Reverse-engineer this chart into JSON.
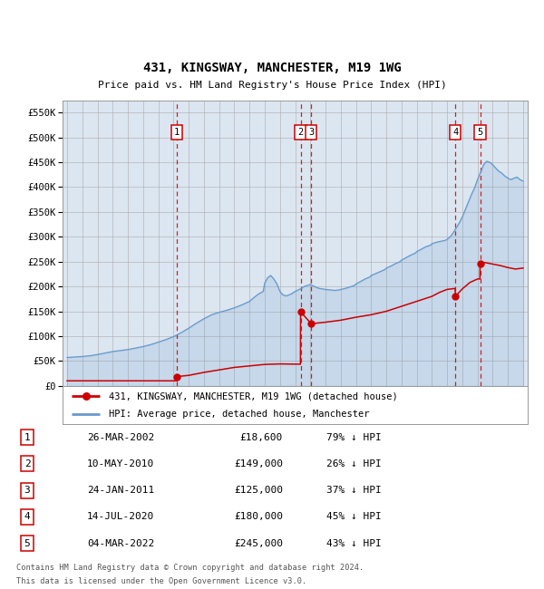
{
  "title": "431, KINGSWAY, MANCHESTER, M19 1WG",
  "subtitle": "Price paid vs. HM Land Registry's House Price Index (HPI)",
  "property_label": "431, KINGSWAY, MANCHESTER, M19 1WG (detached house)",
  "hpi_label": "HPI: Average price, detached house, Manchester",
  "property_color": "#cc0000",
  "hpi_color": "#6699cc",
  "background_color": "#dce6f1",
  "ylim": [
    0,
    575000
  ],
  "yticks": [
    0,
    50000,
    100000,
    150000,
    200000,
    250000,
    300000,
    350000,
    400000,
    450000,
    500000,
    550000
  ],
  "ytick_labels": [
    "£0",
    "£50K",
    "£100K",
    "£150K",
    "£200K",
    "£250K",
    "£300K",
    "£350K",
    "£400K",
    "£450K",
    "£500K",
    "£550K"
  ],
  "footer_line1": "Contains HM Land Registry data © Crown copyright and database right 2024.",
  "footer_line2": "This data is licensed under the Open Government Licence v3.0.",
  "transactions": [
    {
      "num": 1,
      "date": "26-MAR-2002",
      "date_float": 2002.23,
      "price": 18600,
      "price_str": "£18,600",
      "pct": "79% ↓ HPI"
    },
    {
      "num": 2,
      "date": "10-MAY-2010",
      "date_float": 2010.36,
      "price": 149000,
      "price_str": "£149,000",
      "pct": "26% ↓ HPI"
    },
    {
      "num": 3,
      "date": "24-JAN-2011",
      "date_float": 2011.07,
      "price": 125000,
      "price_str": "£125,000",
      "pct": "37% ↓ HPI"
    },
    {
      "num": 4,
      "date": "14-JUL-2020",
      "date_float": 2020.54,
      "price": 180000,
      "price_str": "£180,000",
      "pct": "45% ↓ HPI"
    },
    {
      "num": 5,
      "date": "04-MAR-2022",
      "date_float": 2022.17,
      "price": 245000,
      "price_str": "£245,000",
      "pct": "43% ↓ HPI"
    }
  ],
  "hpi_data": [
    [
      1995.0,
      57000
    ],
    [
      1995.5,
      58000
    ],
    [
      1996.0,
      59000
    ],
    [
      1996.5,
      60500
    ],
    [
      1997.0,
      63000
    ],
    [
      1997.5,
      66000
    ],
    [
      1998.0,
      69000
    ],
    [
      1998.5,
      71000
    ],
    [
      1999.0,
      73000
    ],
    [
      1999.5,
      76000
    ],
    [
      2000.0,
      79000
    ],
    [
      2000.5,
      83000
    ],
    [
      2001.0,
      88000
    ],
    [
      2001.5,
      93000
    ],
    [
      2002.0,
      99000
    ],
    [
      2002.5,
      107000
    ],
    [
      2003.0,
      116000
    ],
    [
      2003.5,
      126000
    ],
    [
      2004.0,
      135000
    ],
    [
      2004.5,
      143000
    ],
    [
      2005.0,
      148000
    ],
    [
      2005.5,
      152000
    ],
    [
      2006.0,
      157000
    ],
    [
      2006.5,
      163000
    ],
    [
      2007.0,
      170000
    ],
    [
      2007.3,
      178000
    ],
    [
      2007.6,
      185000
    ],
    [
      2007.9,
      190000
    ],
    [
      2008.0,
      207000
    ],
    [
      2008.2,
      218000
    ],
    [
      2008.4,
      222000
    ],
    [
      2008.6,
      215000
    ],
    [
      2008.8,
      205000
    ],
    [
      2009.0,
      190000
    ],
    [
      2009.2,
      183000
    ],
    [
      2009.4,
      181000
    ],
    [
      2009.6,
      183000
    ],
    [
      2009.8,
      186000
    ],
    [
      2010.0,
      190000
    ],
    [
      2010.2,
      193000
    ],
    [
      2010.4,
      196000
    ],
    [
      2010.6,
      200000
    ],
    [
      2010.8,
      202000
    ],
    [
      2011.0,
      204000
    ],
    [
      2011.2,
      201000
    ],
    [
      2011.4,
      198000
    ],
    [
      2011.6,
      196000
    ],
    [
      2011.8,
      195000
    ],
    [
      2012.0,
      194000
    ],
    [
      2012.3,
      193000
    ],
    [
      2012.6,
      192000
    ],
    [
      2012.9,
      193000
    ],
    [
      2013.0,
      194000
    ],
    [
      2013.3,
      196000
    ],
    [
      2013.6,
      199000
    ],
    [
      2013.9,
      202000
    ],
    [
      2014.0,
      205000
    ],
    [
      2014.3,
      210000
    ],
    [
      2014.6,
      215000
    ],
    [
      2014.9,
      219000
    ],
    [
      2015.0,
      222000
    ],
    [
      2015.3,
      226000
    ],
    [
      2015.6,
      230000
    ],
    [
      2015.9,
      234000
    ],
    [
      2016.0,
      237000
    ],
    [
      2016.3,
      241000
    ],
    [
      2016.6,
      246000
    ],
    [
      2016.9,
      250000
    ],
    [
      2017.0,
      253000
    ],
    [
      2017.3,
      258000
    ],
    [
      2017.6,
      263000
    ],
    [
      2017.9,
      267000
    ],
    [
      2018.0,
      270000
    ],
    [
      2018.3,
      275000
    ],
    [
      2018.6,
      280000
    ],
    [
      2018.9,
      283000
    ],
    [
      2019.0,
      286000
    ],
    [
      2019.3,
      289000
    ],
    [
      2019.6,
      291000
    ],
    [
      2019.9,
      293000
    ],
    [
      2020.0,
      295000
    ],
    [
      2020.2,
      300000
    ],
    [
      2020.4,
      308000
    ],
    [
      2020.6,
      318000
    ],
    [
      2020.8,
      328000
    ],
    [
      2021.0,
      340000
    ],
    [
      2021.2,
      355000
    ],
    [
      2021.4,
      370000
    ],
    [
      2021.6,
      385000
    ],
    [
      2021.8,
      398000
    ],
    [
      2022.0,
      415000
    ],
    [
      2022.2,
      430000
    ],
    [
      2022.4,
      445000
    ],
    [
      2022.6,
      452000
    ],
    [
      2022.8,
      450000
    ],
    [
      2023.0,
      445000
    ],
    [
      2023.2,
      438000
    ],
    [
      2023.4,
      432000
    ],
    [
      2023.6,
      428000
    ],
    [
      2023.8,
      422000
    ],
    [
      2024.0,
      418000
    ],
    [
      2024.2,
      415000
    ],
    [
      2024.4,
      418000
    ],
    [
      2024.6,
      420000
    ],
    [
      2024.8,
      415000
    ],
    [
      2025.0,
      412000
    ]
  ],
  "prop_data": [
    [
      1995.0,
      10000
    ],
    [
      2002.22,
      10000
    ],
    [
      2002.23,
      18600
    ],
    [
      2003.0,
      21000
    ],
    [
      2004.0,
      27000
    ],
    [
      2005.0,
      32000
    ],
    [
      2006.0,
      37000
    ],
    [
      2007.0,
      40000
    ],
    [
      2008.0,
      43000
    ],
    [
      2009.0,
      44000
    ],
    [
      2010.35,
      43500
    ],
    [
      2010.36,
      149000
    ],
    [
      2011.06,
      125000
    ],
    [
      2012.0,
      128000
    ],
    [
      2013.0,
      132000
    ],
    [
      2014.0,
      138000
    ],
    [
      2015.0,
      143000
    ],
    [
      2016.0,
      150000
    ],
    [
      2017.0,
      160000
    ],
    [
      2018.0,
      170000
    ],
    [
      2019.0,
      180000
    ],
    [
      2019.5,
      188000
    ],
    [
      2020.0,
      194000
    ],
    [
      2020.53,
      196000
    ],
    [
      2020.54,
      180000
    ],
    [
      2021.0,
      195000
    ],
    [
      2021.5,
      208000
    ],
    [
      2022.0,
      215000
    ],
    [
      2022.16,
      215000
    ],
    [
      2022.17,
      245000
    ],
    [
      2022.5,
      248000
    ],
    [
      2023.0,
      245000
    ],
    [
      2023.5,
      242000
    ],
    [
      2024.0,
      238000
    ],
    [
      2024.5,
      235000
    ],
    [
      2025.0,
      237000
    ]
  ],
  "xlim": [
    1994.7,
    2025.3
  ],
  "xticks": [
    1995,
    1996,
    1997,
    1998,
    1999,
    2000,
    2001,
    2002,
    2003,
    2004,
    2005,
    2006,
    2007,
    2008,
    2009,
    2010,
    2011,
    2012,
    2013,
    2014,
    2015,
    2016,
    2017,
    2018,
    2019,
    2020,
    2021,
    2022,
    2023,
    2024,
    2025
  ],
  "vline_color": "#cc0000",
  "grid_color": "#aaaaaa"
}
